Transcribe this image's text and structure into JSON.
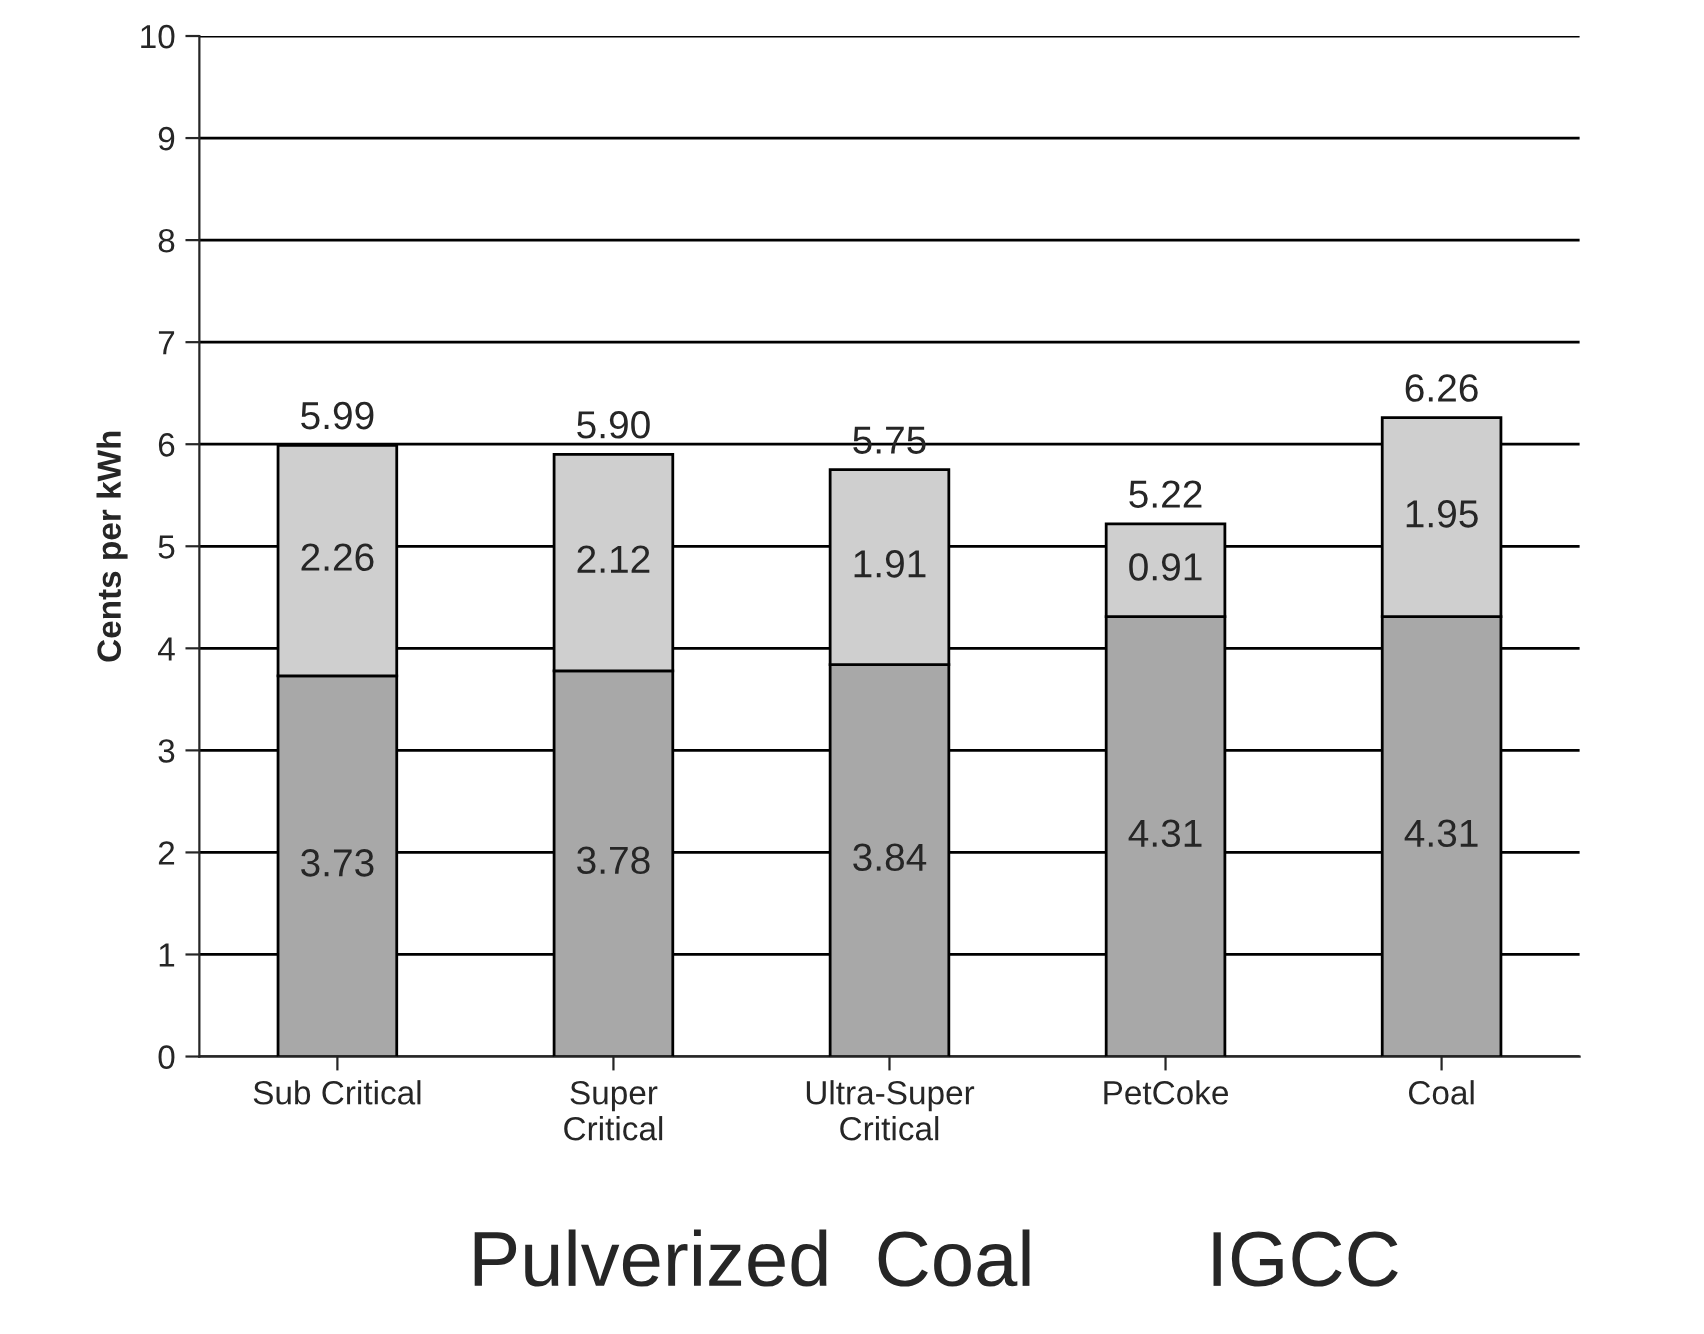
{
  "chart_data": {
    "type": "bar",
    "stacked": true,
    "ylabel": "Cents per kWh",
    "categories": [
      "Sub Critical",
      "Super\nCritical",
      "Ultra-Super\nCritical",
      "PetCoke",
      "Coal"
    ],
    "series": [
      {
        "color": "#a8a8a8",
        "values": [
          3.73,
          3.78,
          3.84,
          4.31,
          4.31
        ],
        "value_labels": [
          "3.73",
          "3.78",
          "3.84",
          "4.31",
          "4.31"
        ]
      },
      {
        "color": "#cfcfcf",
        "values": [
          2.26,
          2.12,
          1.91,
          0.91,
          1.95
        ],
        "value_labels": [
          "2.26",
          "2.12",
          "1.91",
          "0.91",
          "1.95"
        ]
      }
    ],
    "totals": [
      "5.99",
      "5.90",
      "5.75",
      "5.22",
      "6.26"
    ],
    "ylim": [
      0,
      10
    ],
    "yticks": [
      0,
      1,
      2,
      3,
      4,
      5,
      6,
      7,
      8,
      9,
      10
    ],
    "grid": "y",
    "legend": false,
    "annotations": [
      "Pulverized  Coal",
      "IGCC"
    ]
  }
}
